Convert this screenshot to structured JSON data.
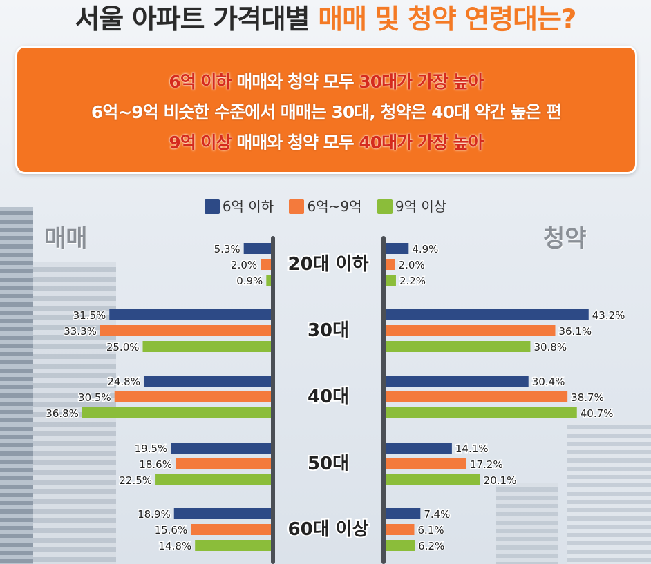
{
  "header": {
    "title_prefix": "서울 아파트 가격대별 ",
    "title_highlight": "매매 및 청약 연령대는?"
  },
  "summary": {
    "line1": {
      "a": "6억 이하",
      "b": " 매매와 청약 모두 ",
      "c": "30대가 가장 높아"
    },
    "line2": "6억~9억 비슷한 수준에서 매매는 30대, 청약은 40대 약간 높은 편",
    "line3": {
      "a": "9억 이상",
      "b": " 매매와 청약 모두 ",
      "c": "40대가 가장 높아"
    }
  },
  "labels": {
    "left": "매매",
    "right": "청약"
  },
  "colors": {
    "blue": "#2d4a86",
    "orange": "#f47a3c",
    "green": "#8bbd3a"
  },
  "chart_data": {
    "type": "bar",
    "orientation": "horizontal-butterfly",
    "categories": [
      "20대 이하",
      "30대",
      "40대",
      "50대",
      "60대 이상"
    ],
    "units": "%",
    "legend": [
      "6억 이하",
      "6억~9억",
      "9억 이상"
    ],
    "panels": [
      {
        "name": "매매",
        "side": "left",
        "series": [
          {
            "name": "6억 이하",
            "color": "#2d4a86",
            "values": [
              5.3,
              31.5,
              24.8,
              19.5,
              18.9
            ]
          },
          {
            "name": "6억~9억",
            "color": "#f47a3c",
            "values": [
              2.0,
              33.3,
              30.5,
              18.6,
              15.6
            ]
          },
          {
            "name": "9억 이상",
            "color": "#8bbd3a",
            "values": [
              0.9,
              25.0,
              36.8,
              22.5,
              14.8
            ]
          }
        ]
      },
      {
        "name": "청약",
        "side": "right",
        "series": [
          {
            "name": "6억 이하",
            "color": "#2d4a86",
            "values": [
              4.9,
              43.2,
              30.4,
              14.1,
              7.4
            ]
          },
          {
            "name": "6억~9억",
            "color": "#f47a3c",
            "values": [
              2.0,
              36.1,
              38.7,
              17.2,
              6.1
            ]
          },
          {
            "name": "9억 이상",
            "color": "#8bbd3a",
            "values": [
              2.2,
              30.8,
              40.7,
              20.1,
              6.2
            ]
          }
        ]
      }
    ]
  }
}
